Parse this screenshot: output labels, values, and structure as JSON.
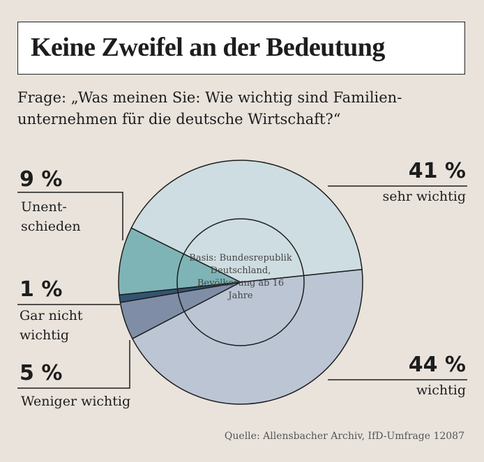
{
  "header": {
    "title": "Keine Zweifel an der Bedeutung",
    "question": "Frage: „Was meinen Sie: Wie wichtig sind Familien-unternehmen für die deutsche Wirtschaft?“"
  },
  "chart_data": {
    "type": "pie",
    "title": "Keine Zweifel an der Bedeutung",
    "center_note": "Basis: Bundesrepublik Deutschland, Bevölkerung ab 16 Jahre",
    "slices": [
      {
        "label": "sehr wichtig",
        "value": 41,
        "value_label": "41 %",
        "color": "#cedde1"
      },
      {
        "label": "Unent-schieden",
        "value": 9,
        "value_label": "9 %",
        "color": "#7fb4b6"
      },
      {
        "label": "Gar nicht wichtig",
        "value": 1,
        "value_label": "1 %",
        "color": "#335472"
      },
      {
        "label": "Weniger wichtig",
        "value": 5,
        "value_label": "5 %",
        "color": "#7f8ea6"
      },
      {
        "label": "wichtig",
        "value": 44,
        "value_label": "44 %",
        "color": "#bcc5d4"
      }
    ]
  },
  "source": "Quelle: Allensbacher Archiv, IfD-Umfrage 12087"
}
